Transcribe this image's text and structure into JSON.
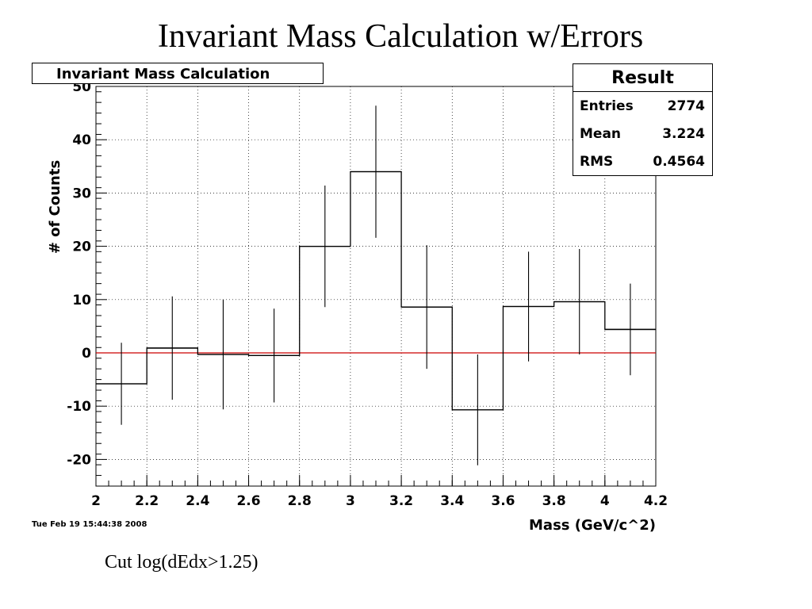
{
  "slide": {
    "title": "Invariant Mass Calculation w/Errors",
    "timestamp": "Tue Feb 19 15:44:38 2008",
    "cut_note": "Cut log(dEdx>1.25)"
  },
  "stats": {
    "header": "Result",
    "rows": [
      {
        "label": "Entries",
        "value": "2774"
      },
      {
        "label": "Mean",
        "value": "3.224"
      },
      {
        "label": "RMS",
        "value": "0.4564"
      }
    ]
  },
  "chart_data": {
    "type": "histogram",
    "title": "Invariant Mass Calculation",
    "xlabel": "Mass (GeV/c^2)",
    "ylabel": "# of Counts",
    "xlim": [
      2.0,
      4.2
    ],
    "ylim": [
      -25,
      50
    ],
    "xticks": [
      "2",
      "2.2",
      "2.4",
      "2.6",
      "2.8",
      "3",
      "3.2",
      "3.4",
      "3.6",
      "3.8",
      "4",
      "4.2"
    ],
    "yticks": [
      "-20",
      "-10",
      "0",
      "10",
      "20",
      "30",
      "40",
      "50"
    ],
    "grid": true,
    "zero_line_color": "#cc0000",
    "bin_edges": [
      2.0,
      2.2,
      2.4,
      2.6,
      2.8,
      3.0,
      3.2,
      3.4,
      3.6,
      3.8,
      4.0,
      4.2
    ],
    "values": [
      -5.8,
      0.9,
      -0.3,
      -0.5,
      20.0,
      34.0,
      8.6,
      -10.7,
      8.7,
      9.6,
      4.4
    ],
    "errors": [
      7.7,
      9.7,
      10.3,
      8.8,
      11.4,
      12.4,
      11.6,
      10.4,
      10.3,
      9.9,
      8.6
    ]
  }
}
